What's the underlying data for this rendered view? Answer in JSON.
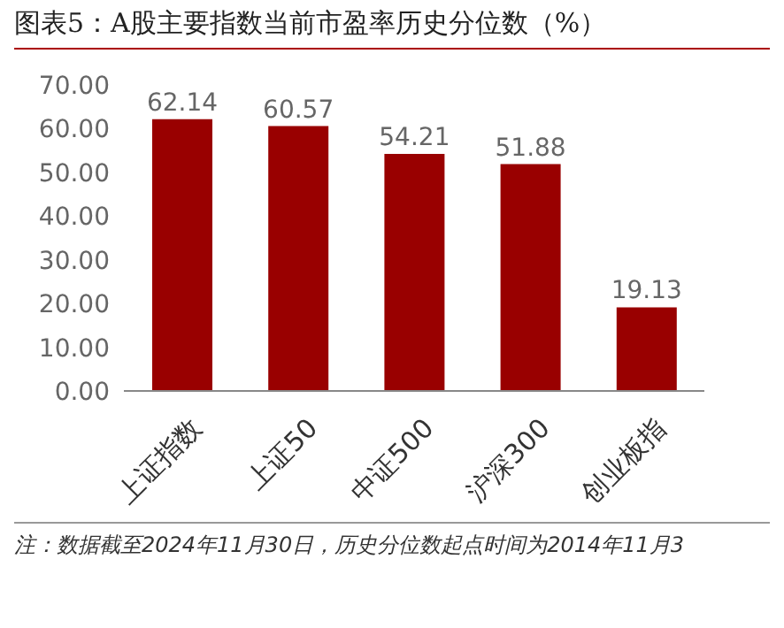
{
  "chart_data": {
    "type": "bar",
    "title": "图表5：A股主要指数当前市盈率历史分位数（%）",
    "categories": [
      "上证指数",
      "上证50",
      "中证500",
      "沪深300",
      "创业板指"
    ],
    "values": [
      62.14,
      60.57,
      54.21,
      51.88,
      19.13
    ],
    "color": "#990000",
    "data_labels": true,
    "ylim": [
      0,
      70
    ],
    "yticks": [
      {
        "value": 0,
        "label": "0.00"
      },
      {
        "value": 10,
        "label": "10.00"
      },
      {
        "value": 20,
        "label": "20.00"
      },
      {
        "value": 30,
        "label": "30.00"
      },
      {
        "value": 40,
        "label": "40.00"
      },
      {
        "value": 50,
        "label": "50.00"
      },
      {
        "value": 60,
        "label": "60.00"
      },
      {
        "value": 70,
        "label": "70.00"
      }
    ],
    "grid": false,
    "annotations": [
      "注：数据截至2024年11月30日，历史分位数起点时间为2014年11月3"
    ]
  }
}
